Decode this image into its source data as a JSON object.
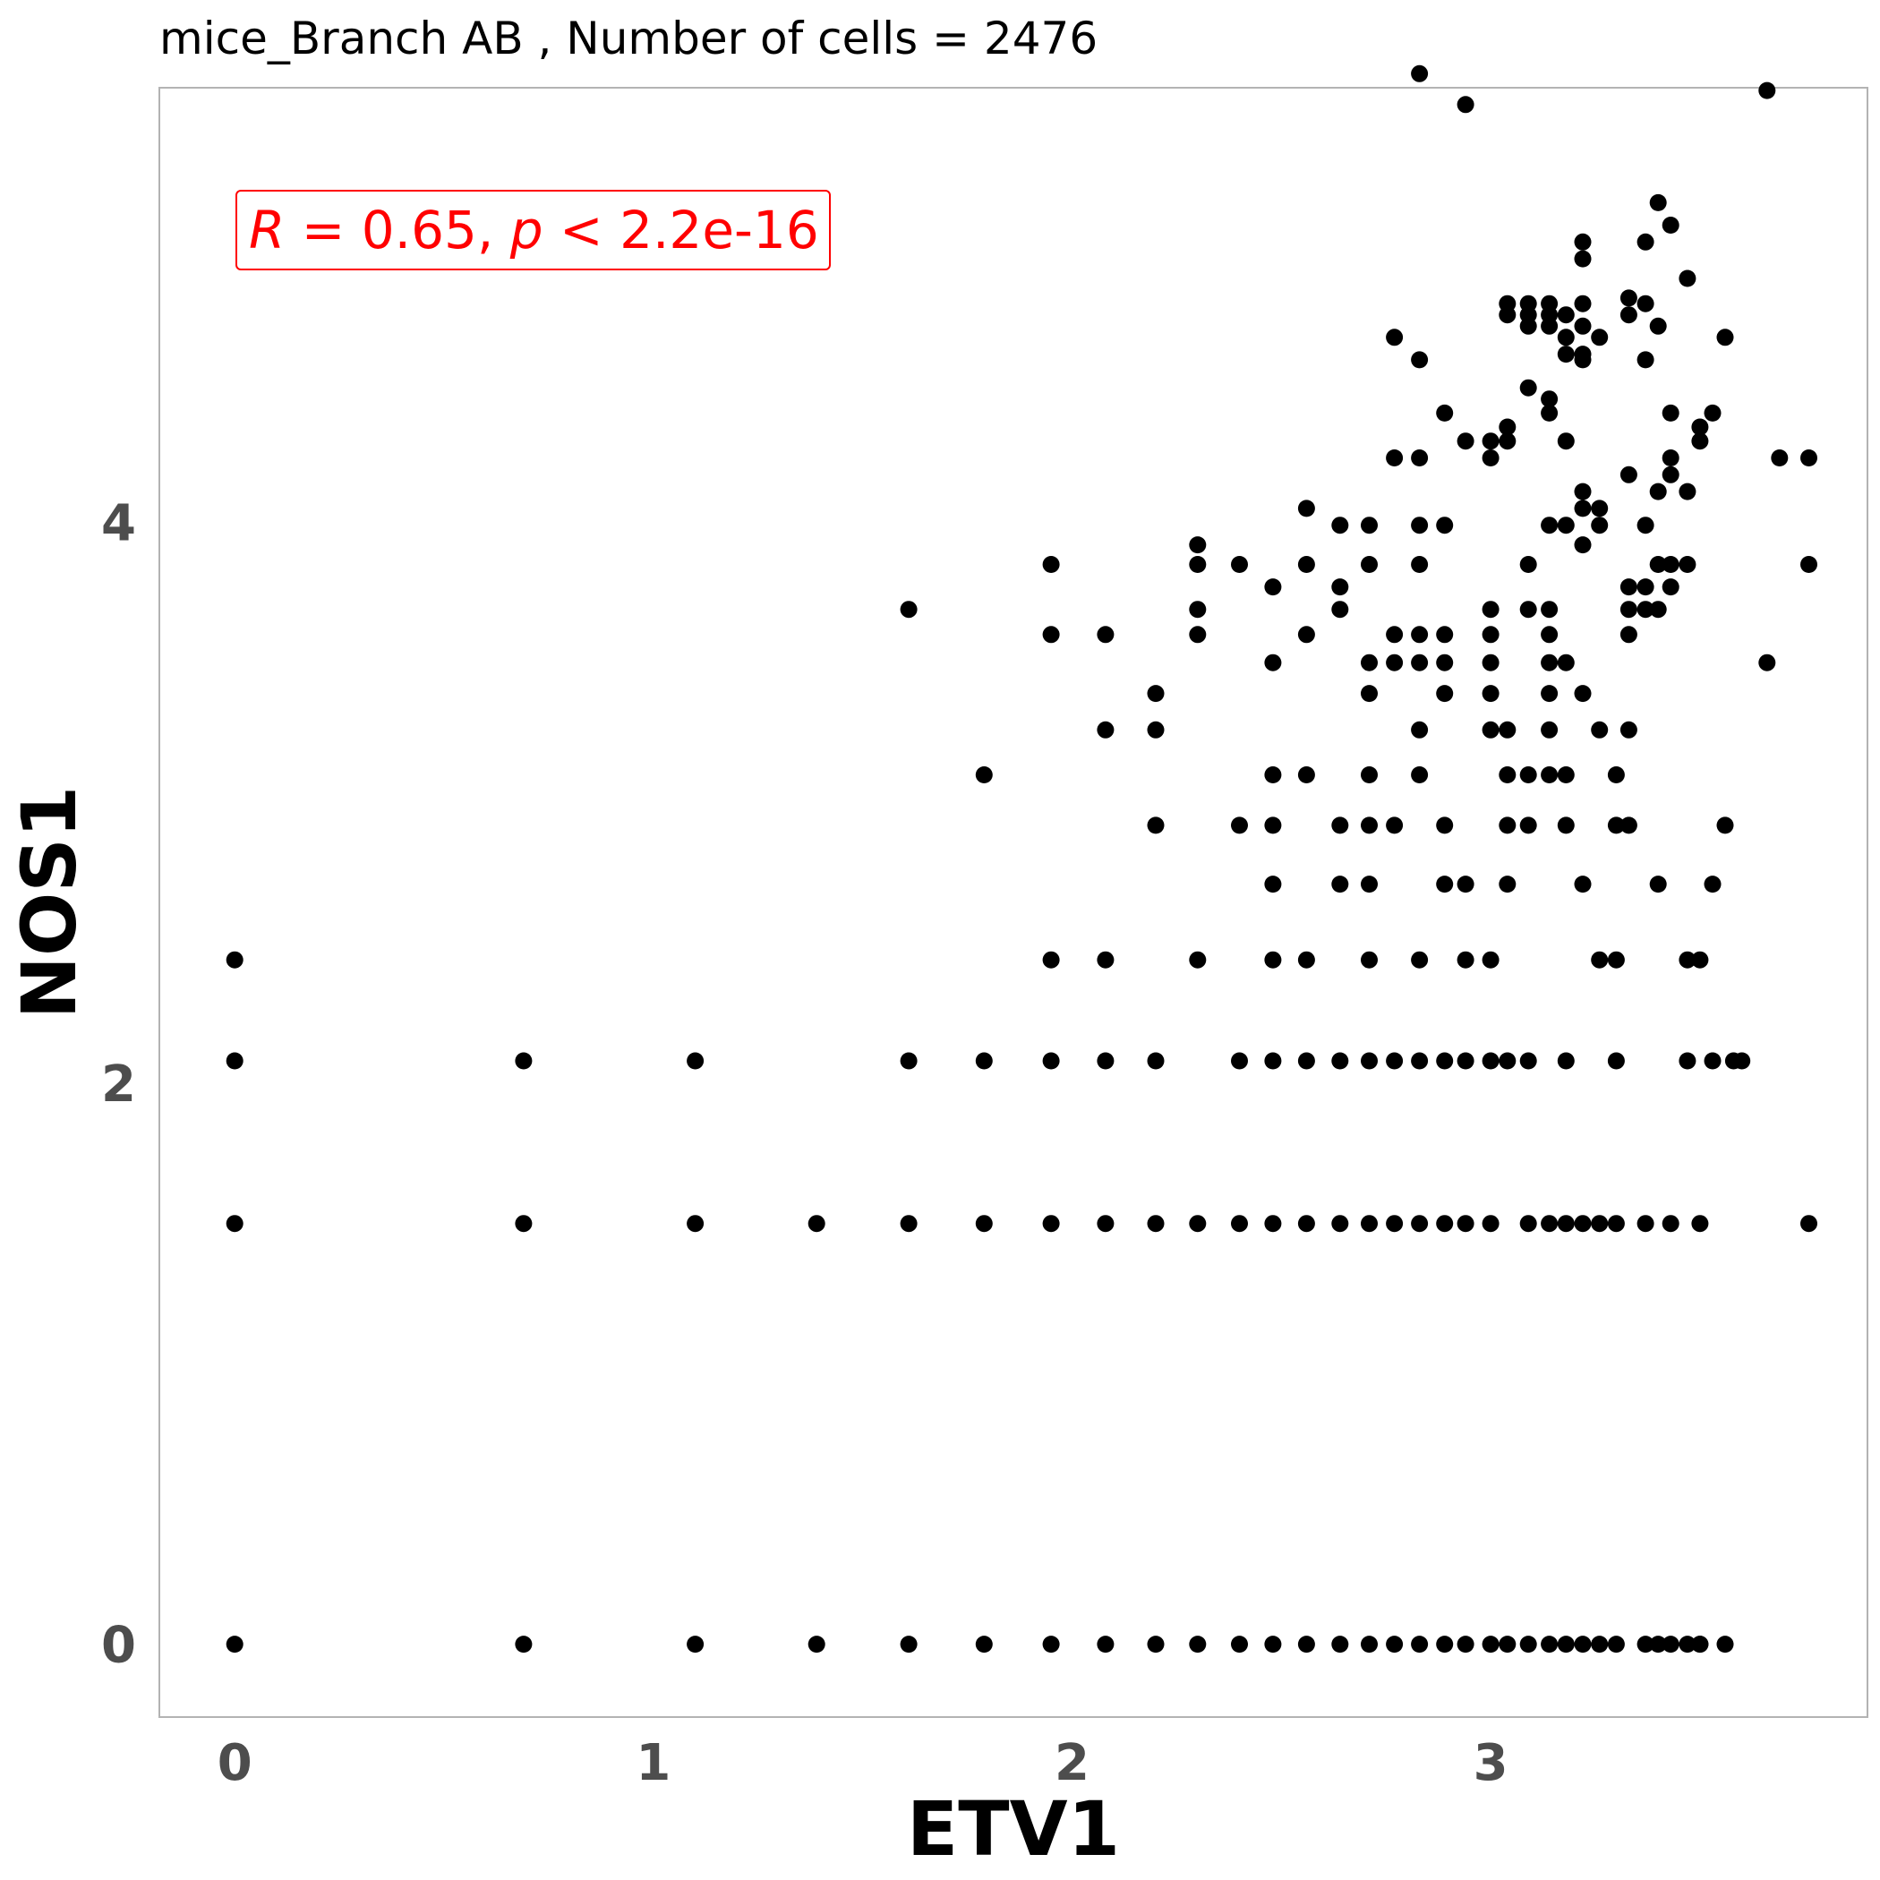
{
  "chart_data": {
    "type": "scatter",
    "title": "mice_Branch AB , Number of cells =  2476",
    "xlabel": "ETV1",
    "ylabel": "NOS1",
    "xlim": [
      -0.18,
      3.9
    ],
    "ylim": [
      -0.26,
      5.55
    ],
    "xticks": [
      0,
      1,
      2,
      3
    ],
    "yticks": [
      0,
      2,
      4
    ],
    "grid": false,
    "point_color": "#000000",
    "annotation": {
      "r_symbol": "R",
      "r_value": " = 0.65, ",
      "p_symbol": "p",
      "p_value": " < 2.2e-16",
      "color": "#ff0000"
    },
    "points": [
      [
        0,
        0
      ],
      [
        0.69,
        0
      ],
      [
        1.1,
        0
      ],
      [
        1.39,
        0
      ],
      [
        1.61,
        0
      ],
      [
        1.79,
        0
      ],
      [
        1.95,
        0
      ],
      [
        2.08,
        0
      ],
      [
        2.2,
        0
      ],
      [
        2.3,
        0
      ],
      [
        2.4,
        0
      ],
      [
        2.48,
        0
      ],
      [
        2.56,
        0
      ],
      [
        2.64,
        0
      ],
      [
        2.71,
        0
      ],
      [
        2.77,
        0
      ],
      [
        2.83,
        0
      ],
      [
        2.89,
        0
      ],
      [
        2.94,
        0
      ],
      [
        3.0,
        0
      ],
      [
        3.04,
        0
      ],
      [
        3.09,
        0
      ],
      [
        3.14,
        0
      ],
      [
        3.18,
        0
      ],
      [
        3.22,
        0
      ],
      [
        3.26,
        0
      ],
      [
        3.3,
        0
      ],
      [
        3.37,
        0
      ],
      [
        3.4,
        0
      ],
      [
        3.43,
        0
      ],
      [
        3.47,
        0
      ],
      [
        3.5,
        0
      ],
      [
        3.56,
        0
      ],
      [
        3.5,
        0
      ],
      [
        0,
        1.5
      ],
      [
        0.69,
        1.5
      ],
      [
        1.1,
        1.5
      ],
      [
        1.39,
        1.5
      ],
      [
        1.61,
        1.5
      ],
      [
        1.79,
        1.5
      ],
      [
        1.95,
        1.5
      ],
      [
        2.08,
        1.5
      ],
      [
        2.2,
        1.5
      ],
      [
        2.3,
        1.5
      ],
      [
        2.4,
        1.5
      ],
      [
        2.48,
        1.5
      ],
      [
        2.56,
        1.5
      ],
      [
        2.64,
        1.5
      ],
      [
        2.71,
        1.5
      ],
      [
        2.77,
        1.5
      ],
      [
        2.83,
        1.5
      ],
      [
        2.89,
        1.5
      ],
      [
        2.94,
        1.5
      ],
      [
        3.0,
        1.5
      ],
      [
        3.09,
        1.5
      ],
      [
        3.14,
        1.5
      ],
      [
        3.18,
        1.5
      ],
      [
        3.22,
        1.5
      ],
      [
        3.26,
        1.5
      ],
      [
        3.3,
        1.5
      ],
      [
        3.37,
        1.5
      ],
      [
        3.43,
        1.5
      ],
      [
        3.5,
        1.5
      ],
      [
        3.76,
        1.5
      ],
      [
        0,
        2.08
      ],
      [
        0.69,
        2.08
      ],
      [
        1.1,
        2.08
      ],
      [
        1.61,
        2.08
      ],
      [
        1.79,
        2.08
      ],
      [
        1.95,
        2.08
      ],
      [
        2.08,
        2.08
      ],
      [
        2.2,
        2.08
      ],
      [
        2.4,
        2.08
      ],
      [
        2.48,
        2.08
      ],
      [
        2.56,
        2.08
      ],
      [
        2.64,
        2.08
      ],
      [
        2.71,
        2.08
      ],
      [
        2.77,
        2.08
      ],
      [
        2.83,
        2.08
      ],
      [
        2.89,
        2.08
      ],
      [
        2.94,
        2.08
      ],
      [
        3.0,
        2.08
      ],
      [
        3.04,
        2.08
      ],
      [
        3.09,
        2.08
      ],
      [
        3.18,
        2.08
      ],
      [
        3.3,
        2.08
      ],
      [
        3.47,
        2.08
      ],
      [
        3.53,
        2.08
      ],
      [
        3.58,
        2.08
      ],
      [
        3.6,
        2.08
      ],
      [
        0,
        2.44
      ],
      [
        1.95,
        2.44
      ],
      [
        2.08,
        2.44
      ],
      [
        2.3,
        2.44
      ],
      [
        2.48,
        2.44
      ],
      [
        2.56,
        2.44
      ],
      [
        2.71,
        2.44
      ],
      [
        2.83,
        2.44
      ],
      [
        2.94,
        2.44
      ],
      [
        3.0,
        2.44
      ],
      [
        3.26,
        2.44
      ],
      [
        3.3,
        2.44
      ],
      [
        3.47,
        2.44
      ],
      [
        3.5,
        2.44
      ],
      [
        2.48,
        2.71
      ],
      [
        2.64,
        2.71
      ],
      [
        2.71,
        2.71
      ],
      [
        2.89,
        2.71
      ],
      [
        2.94,
        2.71
      ],
      [
        3.04,
        2.71
      ],
      [
        3.22,
        2.71
      ],
      [
        3.4,
        2.71
      ],
      [
        3.53,
        2.71
      ],
      [
        2.2,
        2.92
      ],
      [
        2.4,
        2.92
      ],
      [
        2.48,
        2.92
      ],
      [
        2.64,
        2.92
      ],
      [
        2.71,
        2.92
      ],
      [
        2.77,
        2.92
      ],
      [
        2.89,
        2.92
      ],
      [
        3.04,
        2.92
      ],
      [
        3.09,
        2.92
      ],
      [
        3.18,
        2.92
      ],
      [
        3.3,
        2.92
      ],
      [
        3.33,
        2.92
      ],
      [
        3.56,
        2.92
      ],
      [
        1.79,
        3.1
      ],
      [
        2.48,
        3.1
      ],
      [
        2.56,
        3.1
      ],
      [
        2.71,
        3.1
      ],
      [
        2.83,
        3.1
      ],
      [
        3.04,
        3.1
      ],
      [
        3.09,
        3.1
      ],
      [
        3.14,
        3.1
      ],
      [
        3.18,
        3.1
      ],
      [
        3.3,
        3.1
      ],
      [
        2.08,
        3.26
      ],
      [
        2.2,
        3.26
      ],
      [
        2.83,
        3.26
      ],
      [
        3.0,
        3.26
      ],
      [
        3.04,
        3.26
      ],
      [
        3.14,
        3.26
      ],
      [
        3.26,
        3.26
      ],
      [
        3.33,
        3.26
      ],
      [
        2.2,
        3.39
      ],
      [
        2.71,
        3.39
      ],
      [
        2.89,
        3.39
      ],
      [
        3.0,
        3.39
      ],
      [
        3.14,
        3.39
      ],
      [
        3.22,
        3.39
      ],
      [
        2.48,
        3.5
      ],
      [
        2.71,
        3.5
      ],
      [
        2.77,
        3.5
      ],
      [
        2.83,
        3.5
      ],
      [
        2.89,
        3.5
      ],
      [
        3.0,
        3.5
      ],
      [
        3.14,
        3.5
      ],
      [
        3.18,
        3.5
      ],
      [
        3.66,
        3.5
      ],
      [
        1.95,
        3.6
      ],
      [
        2.08,
        3.6
      ],
      [
        2.3,
        3.6
      ],
      [
        2.56,
        3.6
      ],
      [
        2.77,
        3.6
      ],
      [
        2.83,
        3.6
      ],
      [
        2.89,
        3.6
      ],
      [
        3.0,
        3.6
      ],
      [
        3.14,
        3.6
      ],
      [
        3.33,
        3.6
      ],
      [
        1.61,
        3.69
      ],
      [
        2.3,
        3.69
      ],
      [
        2.64,
        3.69
      ],
      [
        3.0,
        3.69
      ],
      [
        3.09,
        3.69
      ],
      [
        3.14,
        3.69
      ],
      [
        3.33,
        3.69
      ],
      [
        3.37,
        3.69
      ],
      [
        3.4,
        3.69
      ],
      [
        2.48,
        3.77
      ],
      [
        2.64,
        3.77
      ],
      [
        3.33,
        3.77
      ],
      [
        3.37,
        3.77
      ],
      [
        3.43,
        3.77
      ],
      [
        1.95,
        3.85
      ],
      [
        2.3,
        3.85
      ],
      [
        2.4,
        3.85
      ],
      [
        2.56,
        3.85
      ],
      [
        2.71,
        3.85
      ],
      [
        2.83,
        3.85
      ],
      [
        3.09,
        3.85
      ],
      [
        3.4,
        3.85
      ],
      [
        3.43,
        3.85
      ],
      [
        3.47,
        3.85
      ],
      [
        3.76,
        3.85
      ],
      [
        2.3,
        3.92
      ],
      [
        3.22,
        3.92
      ],
      [
        2.64,
        3.99
      ],
      [
        2.71,
        3.99
      ],
      [
        2.83,
        3.99
      ],
      [
        2.89,
        3.99
      ],
      [
        3.14,
        3.99
      ],
      [
        3.18,
        3.99
      ],
      [
        3.26,
        3.99
      ],
      [
        3.37,
        3.99
      ],
      [
        2.56,
        4.05
      ],
      [
        3.22,
        4.05
      ],
      [
        3.26,
        4.05
      ],
      [
        3.22,
        4.11
      ],
      [
        3.4,
        4.11
      ],
      [
        3.47,
        4.11
      ],
      [
        3.33,
        4.17
      ],
      [
        3.43,
        4.17
      ],
      [
        2.77,
        4.23
      ],
      [
        2.83,
        4.23
      ],
      [
        3.0,
        4.23
      ],
      [
        3.43,
        4.23
      ],
      [
        3.69,
        4.23
      ],
      [
        3.76,
        4.23
      ],
      [
        2.94,
        4.29
      ],
      [
        3.0,
        4.29
      ],
      [
        3.04,
        4.29
      ],
      [
        3.18,
        4.29
      ],
      [
        3.5,
        4.29
      ],
      [
        3.04,
        4.34
      ],
      [
        3.5,
        4.34
      ],
      [
        2.89,
        4.39
      ],
      [
        3.14,
        4.39
      ],
      [
        3.43,
        4.39
      ],
      [
        3.53,
        4.39
      ],
      [
        3.14,
        4.44
      ],
      [
        3.09,
        4.48
      ],
      [
        2.83,
        4.58
      ],
      [
        3.22,
        4.58
      ],
      [
        3.37,
        4.58
      ],
      [
        3.18,
        4.6
      ],
      [
        3.22,
        4.6
      ],
      [
        2.77,
        4.66
      ],
      [
        3.18,
        4.66
      ],
      [
        3.26,
        4.66
      ],
      [
        3.56,
        4.66
      ],
      [
        3.09,
        4.7
      ],
      [
        3.14,
        4.7
      ],
      [
        3.22,
        4.7
      ],
      [
        3.4,
        4.7
      ],
      [
        3.04,
        4.74
      ],
      [
        3.09,
        4.74
      ],
      [
        3.14,
        4.74
      ],
      [
        3.18,
        4.74
      ],
      [
        3.33,
        4.74
      ],
      [
        3.04,
        4.78
      ],
      [
        3.09,
        4.78
      ],
      [
        3.14,
        4.78
      ],
      [
        3.22,
        4.78
      ],
      [
        3.37,
        4.78
      ],
      [
        3.33,
        4.8
      ],
      [
        3.47,
        4.87
      ],
      [
        3.22,
        4.94
      ],
      [
        3.22,
        5.0
      ],
      [
        3.37,
        5.0
      ],
      [
        3.43,
        5.06
      ],
      [
        3.4,
        5.14
      ],
      [
        2.94,
        5.49
      ],
      [
        2.83,
        5.6
      ],
      [
        3.66,
        5.54
      ]
    ]
  }
}
